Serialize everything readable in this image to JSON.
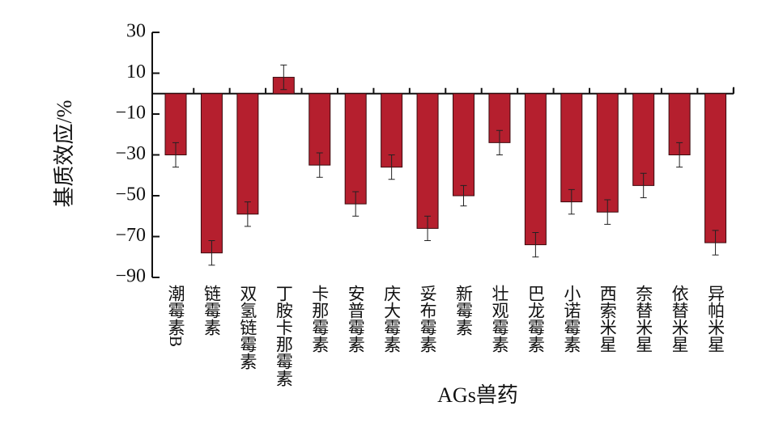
{
  "chart_data": {
    "type": "bar",
    "y_label": "基质效应/%",
    "x_label": "AGs兽药",
    "categories": [
      "潮霉素B",
      "链霉素",
      "双氢链霉素",
      "丁胺卡那霉素",
      "卡那霉素",
      "安普霉素",
      "庆大霉素",
      "妥布霉素",
      "新霉素",
      "壮观霉素",
      "巴龙霉素",
      "小诺霉素",
      "西索米星",
      "奈替米星",
      "依替米星",
      "异帕米星"
    ],
    "values": [
      -30,
      -78,
      -59,
      8,
      -35,
      -54,
      -36,
      -66,
      -50,
      -24,
      -74,
      -53,
      -58,
      -45,
      -30,
      -73
    ],
    "errors": [
      6,
      6,
      6,
      6,
      6,
      6,
      6,
      6,
      5,
      6,
      6,
      6,
      6,
      6,
      6,
      6
    ],
    "color": "#b51f2e",
    "ylim": [
      -90,
      30
    ],
    "yticks": [
      {
        "value": -90,
        "label": "−90"
      },
      {
        "value": -70,
        "label": "−70"
      },
      {
        "value": -50,
        "label": "−50"
      },
      {
        "value": -30,
        "label": "−30"
      },
      {
        "value": -10,
        "label": "−10"
      },
      10,
      30
    ]
  }
}
